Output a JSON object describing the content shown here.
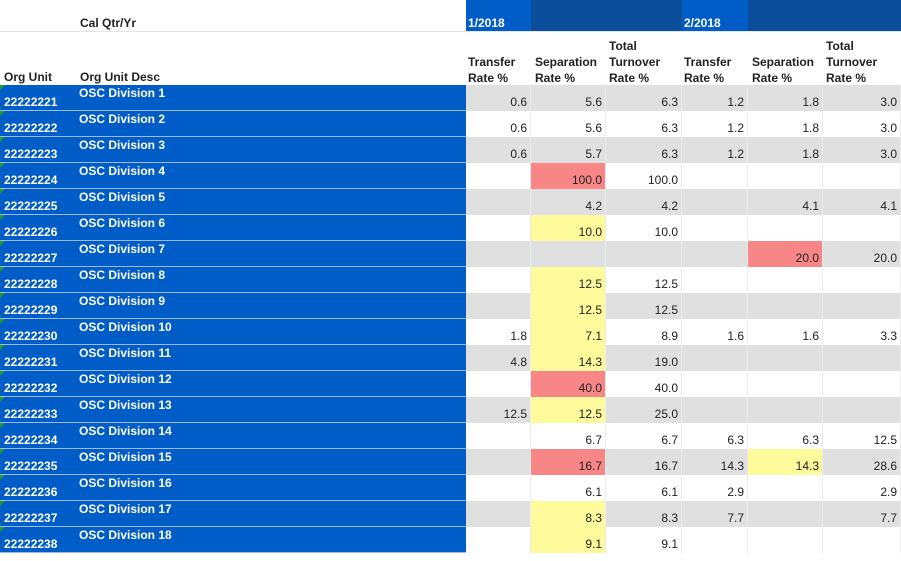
{
  "header": {
    "cal_label": "Cal Qtr/Yr",
    "org_unit": "Org Unit",
    "org_unit_desc": "Org Unit Desc",
    "periods": [
      "1/2018",
      "2/2018"
    ],
    "col_transfer": [
      "Transfer",
      "Rate %"
    ],
    "col_separation": [
      "Separation",
      "Rate %"
    ],
    "col_total": [
      "Total",
      "Turnover",
      "Rate %"
    ]
  },
  "colors": {
    "row_blue": "#005cc6",
    "highlight_red": "#f98686",
    "highlight_yellow": "#fdfa9c",
    "alt_row": "#e0e0e0"
  },
  "rows": [
    {
      "unit": "22222221",
      "desc": "OSC Division 1",
      "v": [
        "0.6",
        "5.6",
        "6.3",
        "1.2",
        "1.8",
        "3.0"
      ],
      "hl": [
        "",
        "",
        "",
        "",
        "",
        ""
      ]
    },
    {
      "unit": "22222222",
      "desc": "OSC Division 2",
      "v": [
        "0.6",
        "5.6",
        "6.3",
        "1.2",
        "1.8",
        "3.0"
      ],
      "hl": [
        "",
        "",
        "",
        "",
        "",
        ""
      ]
    },
    {
      "unit": "22222223",
      "desc": "OSC Division 3",
      "v": [
        "0.6",
        "5.7",
        "6.3",
        "1.2",
        "1.8",
        "3.0"
      ],
      "hl": [
        "",
        "",
        "",
        "",
        "",
        ""
      ]
    },
    {
      "unit": "22222224",
      "desc": "OSC Division 4",
      "v": [
        "",
        "100.0",
        "100.0",
        "",
        "",
        ""
      ],
      "hl": [
        "",
        "red",
        "",
        "",
        "",
        ""
      ]
    },
    {
      "unit": "22222225",
      "desc": "OSC Division 5",
      "v": [
        "",
        "4.2",
        "4.2",
        "",
        "4.1",
        "4.1"
      ],
      "hl": [
        "",
        "",
        "",
        "",
        "",
        ""
      ]
    },
    {
      "unit": "22222226",
      "desc": "OSC Division 6",
      "v": [
        "",
        "10.0",
        "10.0",
        "",
        "",
        ""
      ],
      "hl": [
        "",
        "yel",
        "",
        "",
        "",
        ""
      ]
    },
    {
      "unit": "22222227",
      "desc": "OSC Division 7",
      "v": [
        "",
        "",
        "",
        "",
        "20.0",
        "20.0"
      ],
      "hl": [
        "",
        "",
        "",
        "",
        "red",
        ""
      ]
    },
    {
      "unit": "22222228",
      "desc": "OSC Division 8",
      "v": [
        "",
        "12.5",
        "12.5",
        "",
        "",
        ""
      ],
      "hl": [
        "",
        "yel",
        "",
        "",
        "",
        ""
      ]
    },
    {
      "unit": "22222229",
      "desc": "OSC Division 9",
      "v": [
        "",
        "12.5",
        "12.5",
        "",
        "",
        ""
      ],
      "hl": [
        "",
        "yel",
        "",
        "",
        "",
        ""
      ]
    },
    {
      "unit": "22222230",
      "desc": "OSC Division 10",
      "v": [
        "1.8",
        "7.1",
        "8.9",
        "1.6",
        "1.6",
        "3.3"
      ],
      "hl": [
        "",
        "yel",
        "",
        "",
        "",
        ""
      ]
    },
    {
      "unit": "22222231",
      "desc": "OSC Division 11",
      "v": [
        "4.8",
        "14.3",
        "19.0",
        "",
        "",
        ""
      ],
      "hl": [
        "",
        "yel",
        "",
        "",
        "",
        ""
      ]
    },
    {
      "unit": "22222232",
      "desc": "OSC Division 12",
      "v": [
        "",
        "40.0",
        "40.0",
        "",
        "",
        ""
      ],
      "hl": [
        "",
        "red",
        "",
        "",
        "",
        ""
      ]
    },
    {
      "unit": "22222233",
      "desc": "OSC Division 13",
      "v": [
        "12.5",
        "12.5",
        "25.0",
        "",
        "",
        ""
      ],
      "hl": [
        "",
        "yel",
        "",
        "",
        "",
        ""
      ]
    },
    {
      "unit": "22222234",
      "desc": "OSC Division 14",
      "v": [
        "",
        "6.7",
        "6.7",
        "6.3",
        "6.3",
        "12.5"
      ],
      "hl": [
        "",
        "",
        "",
        "",
        "",
        ""
      ]
    },
    {
      "unit": "22222235",
      "desc": "OSC Division 15",
      "v": [
        "",
        "16.7",
        "16.7",
        "14.3",
        "14.3",
        "28.6"
      ],
      "hl": [
        "",
        "red",
        "",
        "",
        "yel",
        ""
      ]
    },
    {
      "unit": "22222236",
      "desc": "OSC Division 16",
      "v": [
        "",
        "6.1",
        "6.1",
        "2.9",
        "",
        "2.9"
      ],
      "hl": [
        "",
        "",
        "",
        "",
        "",
        ""
      ]
    },
    {
      "unit": "22222237",
      "desc": "OSC Division 17",
      "v": [
        "",
        "8.3",
        "8.3",
        "7.7",
        "",
        "7.7"
      ],
      "hl": [
        "",
        "yel",
        "",
        "",
        "",
        ""
      ]
    },
    {
      "unit": "22222238",
      "desc": "OSC Division 18",
      "v": [
        "",
        "9.1",
        "9.1",
        "",
        "",
        ""
      ],
      "hl": [
        "",
        "yel",
        "",
        "",
        "",
        ""
      ]
    }
  ]
}
